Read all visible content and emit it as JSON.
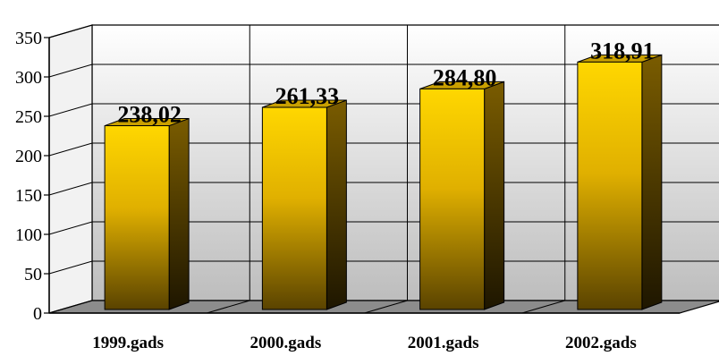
{
  "chart_data": {
    "type": "bar",
    "title": "",
    "xlabel": "",
    "ylabel": "",
    "categories": [
      "1999.gads",
      "2000.gads",
      "2001.gads",
      "2002.gads"
    ],
    "values": [
      238.02,
      261.33,
      284.8,
      318.91
    ],
    "data_labels": [
      "238,02",
      "261,33",
      "284,80",
      "318,91"
    ],
    "ylim": [
      0,
      350
    ],
    "y_ticks": [
      0,
      50,
      100,
      150,
      200,
      250,
      300,
      350
    ],
    "grid": true,
    "three_d": true,
    "colors": {
      "bar_top": "#ffd700",
      "bar_mid": "#d9a800",
      "bar_bottom": "#5a4300",
      "bar_side": "#3d2e00",
      "floor": "#8c8c8c",
      "wall_top": "#ffffff",
      "wall_bottom": "#bdbdbd"
    }
  }
}
